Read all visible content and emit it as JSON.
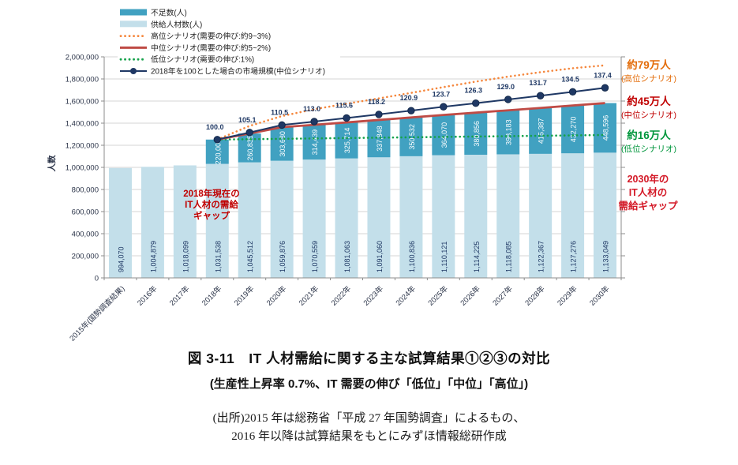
{
  "figure": {
    "title": "図 3-11　IT 人材需給に関する主な試算結果①②③の対比",
    "subtitle": "(生産性上昇率 0.7%、IT 需要の伸び「低位」「中位」「高位」)",
    "source_line1": "(出所)2015 年は総務省「平成 27 年国勢調査」によるもの、",
    "source_line2": "2016 年以降は試算結果をもとにみずほ情報総研作成"
  },
  "chart_data": {
    "type": "bar",
    "subtype": "stacked-bars-with-lines",
    "title": "",
    "xlabel": "",
    "ylabel": "人数",
    "ylim": [
      0,
      2000000
    ],
    "ytick_step": 200000,
    "grid": true,
    "legend_position": "top-left-inside",
    "categories": [
      "2015年(国勢調査結果)",
      "2016年",
      "2017年",
      "2018年",
      "2019年",
      "2020年",
      "2021年",
      "2022年",
      "2023年",
      "2024年",
      "2025年",
      "2026年",
      "2027年",
      "2028年",
      "2029年",
      "2030年"
    ],
    "series": [
      {
        "name": "供給人材数(人)",
        "type": "bar",
        "color_key": "bar_supply",
        "values": [
          994070,
          1004879,
          1018099,
          1031538,
          1045512,
          1059876,
          1070559,
          1081063,
          1091060,
          1100836,
          1110121,
          1114225,
          1118085,
          1122367,
          1127276,
          1133049
        ]
      },
      {
        "name": "不足数(人)",
        "type": "bar",
        "stacked_on": "供給人材数(人)",
        "color_key": "bar_shortage",
        "values": [
          null,
          null,
          null,
          220000,
          260835,
          303680,
          314439,
          325714,
          337848,
          350532,
          364070,
          380856,
          398183,
          415387,
          432270,
          448596
        ]
      },
      {
        "name": "高位シナリオ(需要の伸び:約9~3%)",
        "type": "dotted-line",
        "color_key": "line_high",
        "estimated_from_pixels": true,
        "values": [
          null,
          null,
          null,
          1251538,
          1375000,
          1464000,
          1526000,
          1576000,
          1624000,
          1674000,
          1726000,
          1776000,
          1821000,
          1861000,
          1897000,
          1923049
        ]
      },
      {
        "name": "中位シナリオ(需要の伸び:約5~2%)",
        "type": "line",
        "color_key": "line_mid",
        "values": [
          null,
          null,
          null,
          1251538,
          1306347,
          1363556,
          1384998,
          1406777,
          1428908,
          1451368,
          1474191,
          1495081,
          1516268,
          1537754,
          1559546,
          1581645
        ]
      },
      {
        "name": "低位シナリオ(需要の伸び:1%)",
        "type": "dotted-line",
        "color_key": "line_low",
        "estimated_from_pixels": true,
        "values": [
          null,
          null,
          null,
          1251538,
          1254997,
          1258456,
          1261916,
          1265375,
          1268834,
          1272293,
          1275753,
          1279212,
          1282671,
          1286130,
          1289590,
          1293049
        ]
      },
      {
        "name": "2018年を100とした場合の市場規模(中位シナリオ)",
        "type": "line-markers",
        "color_key": "line_index",
        "index_baseline_value": 1251538,
        "index_values": [
          null,
          null,
          null,
          100.0,
          105.1,
          110.5,
          113.0,
          115.6,
          118.2,
          120.9,
          123.7,
          126.3,
          129.0,
          131.7,
          134.5,
          137.4
        ],
        "point_labels": [
          null,
          null,
          null,
          "100.0",
          "105.1",
          "110.5",
          "113.0",
          "115.6",
          "118.2",
          "120.9",
          "123.7",
          "126.3",
          "129.0",
          "131.7",
          "134.5",
          "137.4"
        ]
      }
    ],
    "legend": [
      {
        "label": "不足数(人)",
        "swatch": "bar",
        "color_key": "bar_shortage"
      },
      {
        "label": "供給人材数(人)",
        "swatch": "bar",
        "color_key": "bar_supply"
      },
      {
        "label": "高位シナリオ(需要の伸び:約9~3%)",
        "swatch": "dotted",
        "color_key": "line_high"
      },
      {
        "label": "中位シナリオ(需要の伸び:約5~2%)",
        "swatch": "solid",
        "color_key": "line_mid"
      },
      {
        "label": "低位シナリオ(需要の伸び:1%)",
        "swatch": "dotted",
        "color_key": "line_low"
      },
      {
        "label": "2018年を100とした場合の市場規模(中位シナリオ)",
        "swatch": "line-marker",
        "color_key": "line_index"
      }
    ]
  },
  "annotations": {
    "gap_2018_lines": [
      "2018年現在の",
      "IT人材の需給",
      "ギャップ"
    ],
    "gap_2030_lines": [
      "2030年の",
      "IT人材の",
      "需給ギャップ"
    ],
    "gap_high": {
      "value": "約79万人",
      "label": "(高位シナリオ)"
    },
    "gap_mid": {
      "value": "約45万人",
      "label": "(中位シナリオ)"
    },
    "gap_low": {
      "value": "約16万人",
      "label": "(低位シナリオ)"
    }
  },
  "colors": {
    "bar_supply": "#c3dfea",
    "bar_shortage": "#41a1c1",
    "line_high": "#f5873d",
    "line_mid": "#bf4b45",
    "line_low": "#16a24b",
    "line_index": "#1f3864",
    "grid": "#d6d6d6",
    "axis": "#8c8c8c",
    "axis_text": "#2a3348",
    "bar_label_supply": "#1f3864",
    "bar_label_shortage": "#ffffff",
    "index_label": "#1f3864",
    "legend_text": "#222222",
    "ann_2018": "#c00000",
    "ann_2030": "#d41a28",
    "ann_high": "#e36c09",
    "ann_mid": "#c00000",
    "ann_low": "#00963c"
  }
}
